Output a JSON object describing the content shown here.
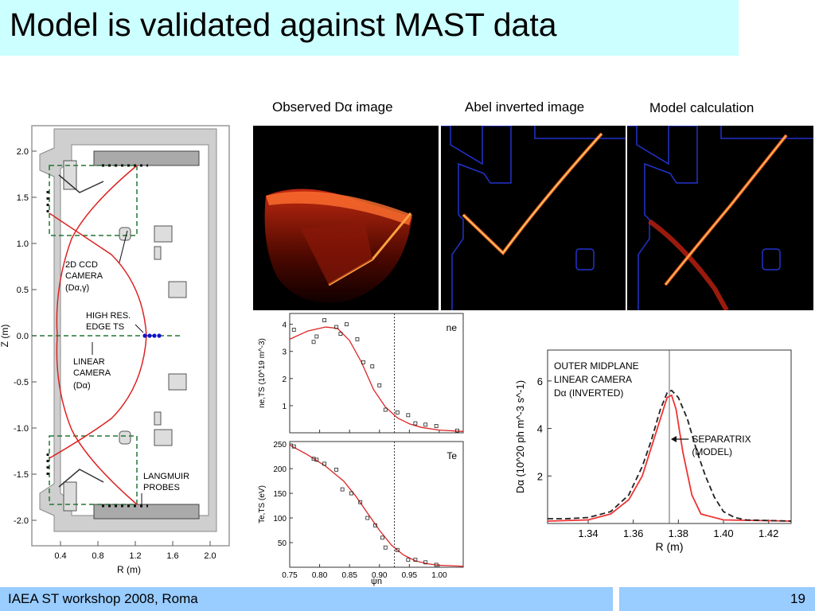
{
  "slide": {
    "title": "Model is validated against MAST data",
    "footer_left": "IAEA ST workshop 2008, Roma",
    "page_number": "19"
  },
  "images": {
    "observed_label": "Observed Dα image",
    "abel_label": "Abel inverted image",
    "model_label": "Model calculation"
  },
  "cross_section": {
    "y_axis_label": "Z (m)",
    "x_axis_label": "R (m)",
    "y_ticks": [
      "2.0",
      "1.5",
      "1.0",
      "0.5",
      "0.0",
      "-0.5",
      "-1.0",
      "-1.5",
      "-2.0"
    ],
    "x_ticks": [
      "0.4",
      "0.8",
      "1.2",
      "1.6",
      "2.0"
    ],
    "annotations": {
      "ccd_line1": "2D CCD",
      "ccd_line2": "CAMERA",
      "ccd_line3": "(Dα,γ)",
      "ts_line1": "HIGH RES.",
      "ts_line2": "EDGE TS",
      "linear_line1": "LINEAR",
      "linear_line2": "CAMERA",
      "linear_line3": "(Dα)",
      "lp_line1": "LANGMUIR",
      "lp_line2": "PROBES"
    },
    "colors": {
      "wall": "#b0b0b0",
      "separatrix": "#dd2222",
      "view": "#227733",
      "ts": "#1111cc"
    }
  },
  "chart_data": [
    {
      "type": "scatter",
      "panel": "density",
      "tag": "ne",
      "ylabel": "ne,TS (10^19 m^-3)",
      "xlim": [
        0.75,
        1.04
      ],
      "ylim": [
        0,
        4.4
      ],
      "y_ticks": [
        "1",
        "2",
        "3",
        "4"
      ],
      "separatrix_x": 0.925,
      "points": [
        [
          0.757,
          3.8
        ],
        [
          0.79,
          3.35
        ],
        [
          0.795,
          3.55
        ],
        [
          0.808,
          4.15
        ],
        [
          0.828,
          3.9
        ],
        [
          0.835,
          3.65
        ],
        [
          0.845,
          4.0
        ],
        [
          0.863,
          3.45
        ],
        [
          0.873,
          2.6
        ],
        [
          0.888,
          2.45
        ],
        [
          0.9,
          1.75
        ],
        [
          0.91,
          0.85
        ],
        [
          0.93,
          0.75
        ],
        [
          0.948,
          0.65
        ],
        [
          0.96,
          0.35
        ],
        [
          0.977,
          0.3
        ],
        [
          0.995,
          0.25
        ],
        [
          1.03,
          0.08
        ]
      ],
      "model_x": [
        0.75,
        0.78,
        0.81,
        0.83,
        0.85,
        0.87,
        0.89,
        0.91,
        0.93,
        0.95,
        0.97,
        1.0,
        1.04
      ],
      "model_y": [
        3.45,
        3.75,
        3.9,
        3.85,
        3.4,
        2.6,
        1.6,
        0.95,
        0.55,
        0.33,
        0.2,
        0.1,
        0.05
      ],
      "colors": {
        "model": "#dd2222"
      }
    },
    {
      "type": "scatter",
      "panel": "temperature",
      "tag": "Te",
      "ylabel": "Te,TS (eV)",
      "xlabel": "ψn",
      "xlim": [
        0.75,
        1.04
      ],
      "ylim": [
        0,
        255
      ],
      "x_ticks": [
        "0.75",
        "0.80",
        "0.85",
        "0.90",
        "0.95",
        "1.00"
      ],
      "y_ticks": [
        "50",
        "100",
        "150",
        "200",
        "250"
      ],
      "separatrix_x": 0.925,
      "points": [
        [
          0.757,
          245
        ],
        [
          0.79,
          220
        ],
        [
          0.795,
          218
        ],
        [
          0.808,
          210
        ],
        [
          0.828,
          198
        ],
        [
          0.838,
          158
        ],
        [
          0.853,
          150
        ],
        [
          0.868,
          132
        ],
        [
          0.88,
          100
        ],
        [
          0.893,
          85
        ],
        [
          0.905,
          60
        ],
        [
          0.91,
          40
        ],
        [
          0.93,
          35
        ],
        [
          0.948,
          15
        ],
        [
          0.96,
          15
        ],
        [
          0.977,
          10
        ],
        [
          0.995,
          5
        ]
      ],
      "model_x": [
        0.75,
        0.78,
        0.81,
        0.84,
        0.86,
        0.88,
        0.9,
        0.92,
        0.94,
        0.96,
        0.98,
        1.0,
        1.04
      ],
      "model_y": [
        248,
        228,
        205,
        175,
        145,
        110,
        75,
        45,
        25,
        13,
        7,
        4,
        2
      ],
      "colors": {
        "model": "#dd2222"
      }
    },
    {
      "type": "line",
      "panel": "midplane",
      "annotation_lines": [
        "OUTER MIDPLANE",
        "LINEAR CAMERA",
        "Dα (INVERTED)"
      ],
      "separatrix_lines": [
        "SEPARATRIX",
        "(MODEL)"
      ],
      "xlabel": "R (m)",
      "ylabel": "Dα (10^20 ph m^-3 s^-1)",
      "xlim": [
        1.322,
        1.43
      ],
      "ylim": [
        0,
        7.3
      ],
      "x_ticks": [
        "1.34",
        "1.36",
        "1.38",
        "1.40",
        "1.42"
      ],
      "y_ticks": [
        "2",
        "4",
        "6"
      ],
      "separatrix_x": 1.376,
      "series": [
        {
          "name": "model",
          "color": "#ee3333",
          "dashed": false,
          "x": [
            1.322,
            1.34,
            1.35,
            1.358,
            1.364,
            1.368,
            1.372,
            1.375,
            1.377,
            1.379,
            1.382,
            1.386,
            1.39,
            1.4,
            1.43
          ],
          "y": [
            0.1,
            0.15,
            0.4,
            1.0,
            2.0,
            3.2,
            4.4,
            5.3,
            5.4,
            4.8,
            3.0,
            1.2,
            0.4,
            0.15,
            0.1
          ]
        },
        {
          "name": "inverted",
          "color": "#222222",
          "dashed": true,
          "x": [
            1.322,
            1.33,
            1.34,
            1.35,
            1.358,
            1.364,
            1.368,
            1.372,
            1.375,
            1.377,
            1.38,
            1.384,
            1.388,
            1.392,
            1.396,
            1.4,
            1.405,
            1.41,
            1.43
          ],
          "y": [
            0.2,
            0.2,
            0.25,
            0.5,
            1.2,
            2.4,
            3.5,
            4.8,
            5.5,
            5.6,
            5.3,
            4.4,
            3.1,
            2.0,
            1.1,
            0.5,
            0.25,
            0.15,
            0.1
          ]
        }
      ]
    }
  ]
}
